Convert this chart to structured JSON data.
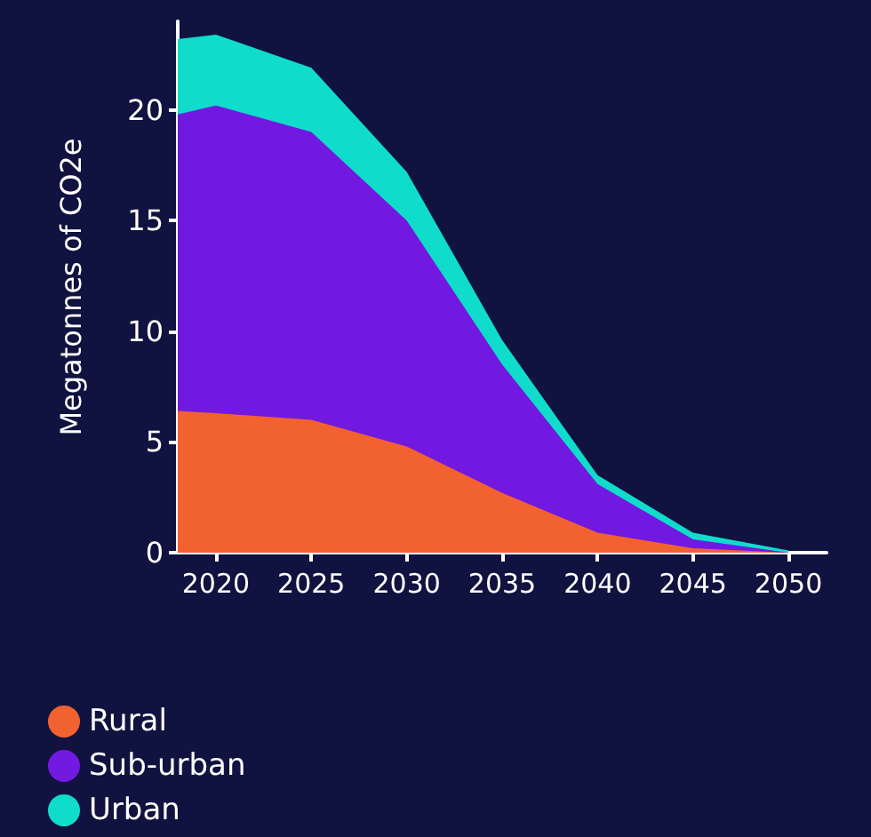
{
  "chart_data": {
    "type": "area",
    "stacked": true,
    "ylabel": "Megatonnes of CO2e",
    "x": [
      2018,
      2020,
      2025,
      2030,
      2035,
      2040,
      2045,
      2050
    ],
    "xlim": [
      2018,
      2052
    ],
    "xticks": [
      2020,
      2025,
      2030,
      2035,
      2040,
      2045,
      2050
    ],
    "ylim": [
      0,
      24
    ],
    "yticks": [
      0,
      5,
      10,
      15,
      20
    ],
    "legend": "bottom left",
    "series": [
      {
        "name": "Rural",
        "color": "#f26130",
        "values": [
          6.4,
          6.3,
          6.0,
          4.8,
          2.7,
          0.9,
          0.2,
          0
        ]
      },
      {
        "name": "Sub-urban",
        "color": "#7119e0",
        "values": [
          13.4,
          13.9,
          13.0,
          10.2,
          5.8,
          2.2,
          0.4,
          0
        ]
      },
      {
        "name": "Urban",
        "color": "#0fdccb",
        "values": [
          3.4,
          3.2,
          2.9,
          2.2,
          1.1,
          0.4,
          0.3,
          0.1
        ]
      }
    ]
  }
}
